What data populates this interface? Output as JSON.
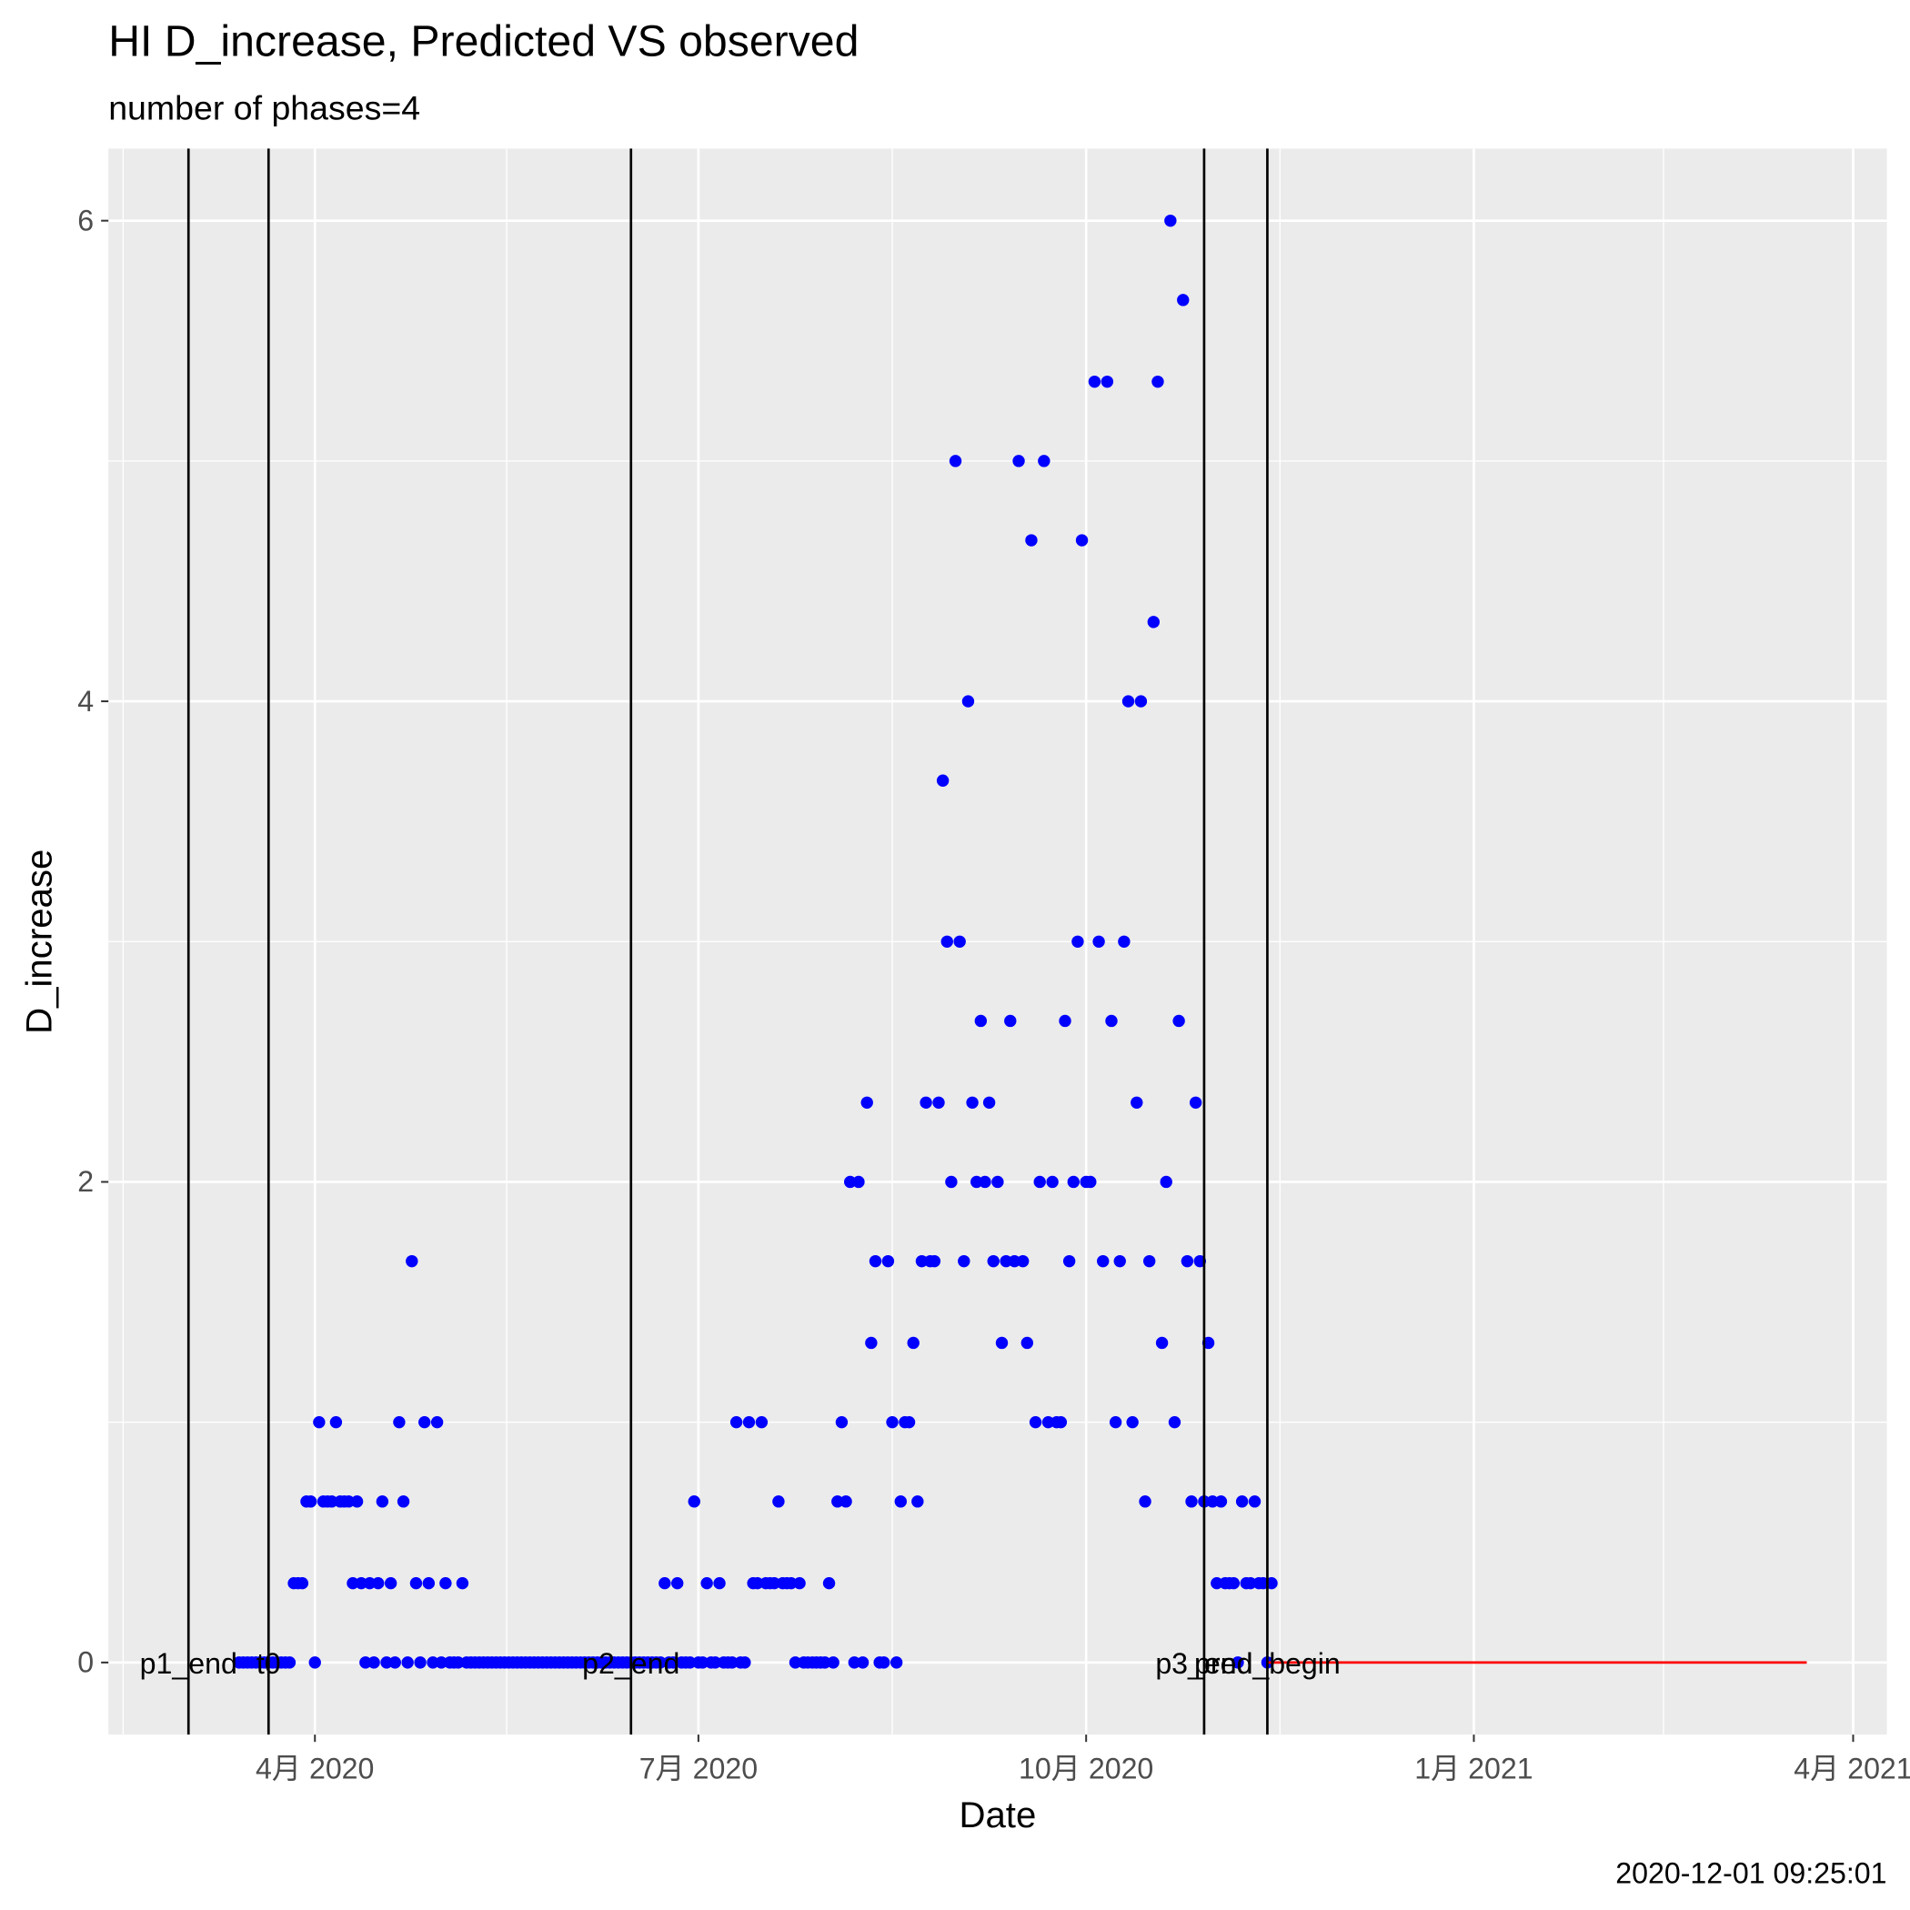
{
  "chart_data": {
    "type": "scatter",
    "title": "HI D_increase, Predicted VS observed",
    "subtitle": "number of phases=4",
    "x_label": "Date",
    "y_label": "D_increase",
    "caption": "2020-12-01 09:25:01",
    "xlim": [
      "2020-02-12",
      "2021-04-09"
    ],
    "xticks": [
      {
        "value": "2020-04-01",
        "label": "4月 2020"
      },
      {
        "value": "2020-07-01",
        "label": "7月 2020"
      },
      {
        "value": "2020-10-01",
        "label": "10月 2020"
      },
      {
        "value": "2021-01-01",
        "label": "1月 2021"
      },
      {
        "value": "2021-04-01",
        "label": "4月 2021"
      }
    ],
    "ylim": [
      -0.3,
      6.3
    ],
    "yticks": [
      0,
      2,
      4,
      6
    ],
    "grid": true,
    "vlines": [
      {
        "label": "p1_end",
        "x": "2020-03-02",
        "color": "#000000"
      },
      {
        "label": "t0",
        "x": "2020-03-21",
        "color": "#000000"
      },
      {
        "label": "p2_end",
        "x": "2020-06-15",
        "color": "#000000"
      },
      {
        "label": "p3_end",
        "x": "2020-10-29",
        "color": "#000000"
      },
      {
        "label": "pred_begin",
        "x": "2020-11-13",
        "color": "#000000"
      }
    ],
    "series": [
      {
        "type": "scatter",
        "color": "#0000ff",
        "x": [
          "2020-03-14",
          "2020-03-15",
          "2020-03-16",
          "2020-03-17",
          "2020-03-18",
          "2020-03-19",
          "2020-03-20",
          "2020-03-21",
          "2020-03-22",
          "2020-03-23",
          "2020-03-24",
          "2020-03-25",
          "2020-03-26",
          "2020-03-27",
          "2020-03-28",
          "2020-03-29",
          "2020-03-30",
          "2020-03-31",
          "2020-04-01",
          "2020-04-02",
          "2020-04-03",
          "2020-04-04",
          "2020-04-05",
          "2020-04-06",
          "2020-04-07",
          "2020-04-08",
          "2020-04-09",
          "2020-04-10",
          "2020-04-11",
          "2020-04-12",
          "2020-04-13",
          "2020-04-14",
          "2020-04-15",
          "2020-04-16",
          "2020-04-17",
          "2020-04-18",
          "2020-04-19",
          "2020-04-20",
          "2020-04-21",
          "2020-04-22",
          "2020-04-23",
          "2020-04-24",
          "2020-04-25",
          "2020-04-26",
          "2020-04-27",
          "2020-04-28",
          "2020-04-29",
          "2020-04-30",
          "2020-05-01",
          "2020-05-02",
          "2020-05-03",
          "2020-05-04",
          "2020-05-05",
          "2020-05-06",
          "2020-05-07",
          "2020-05-08",
          "2020-05-09",
          "2020-05-10",
          "2020-05-11",
          "2020-05-12",
          "2020-05-13",
          "2020-05-14",
          "2020-05-15",
          "2020-05-16",
          "2020-05-17",
          "2020-05-18",
          "2020-05-19",
          "2020-05-20",
          "2020-05-21",
          "2020-05-22",
          "2020-05-23",
          "2020-05-24",
          "2020-05-25",
          "2020-05-26",
          "2020-05-27",
          "2020-05-28",
          "2020-05-29",
          "2020-05-30",
          "2020-05-31",
          "2020-06-01",
          "2020-06-02",
          "2020-06-03",
          "2020-06-04",
          "2020-06-05",
          "2020-06-06",
          "2020-06-07",
          "2020-06-08",
          "2020-06-09",
          "2020-06-10",
          "2020-06-11",
          "2020-06-12",
          "2020-06-13",
          "2020-06-14",
          "2020-06-15",
          "2020-06-16",
          "2020-06-17",
          "2020-06-18",
          "2020-06-19",
          "2020-06-20",
          "2020-06-21",
          "2020-06-22",
          "2020-06-23",
          "2020-06-24",
          "2020-06-25",
          "2020-06-26",
          "2020-06-27",
          "2020-06-28",
          "2020-06-29",
          "2020-06-30",
          "2020-07-01",
          "2020-07-02",
          "2020-07-03",
          "2020-07-04",
          "2020-07-05",
          "2020-07-06",
          "2020-07-07",
          "2020-07-08",
          "2020-07-09",
          "2020-07-10",
          "2020-07-11",
          "2020-07-12",
          "2020-07-13",
          "2020-07-14",
          "2020-07-15",
          "2020-07-16",
          "2020-07-17",
          "2020-07-18",
          "2020-07-19",
          "2020-07-20",
          "2020-07-21",
          "2020-07-22",
          "2020-07-23",
          "2020-07-24",
          "2020-07-25",
          "2020-07-26",
          "2020-07-27",
          "2020-07-28",
          "2020-07-29",
          "2020-07-30",
          "2020-07-31",
          "2020-08-01",
          "2020-08-02",
          "2020-08-03",
          "2020-08-04",
          "2020-08-05",
          "2020-08-06",
          "2020-08-07",
          "2020-08-08",
          "2020-08-09",
          "2020-08-10",
          "2020-08-11",
          "2020-08-12",
          "2020-08-13",
          "2020-08-14",
          "2020-08-15",
          "2020-08-16",
          "2020-08-17",
          "2020-08-18",
          "2020-08-19",
          "2020-08-20",
          "2020-08-21",
          "2020-08-22",
          "2020-08-23",
          "2020-08-24",
          "2020-08-25",
          "2020-08-26",
          "2020-08-27",
          "2020-08-28",
          "2020-08-29",
          "2020-08-30",
          "2020-08-31",
          "2020-09-01",
          "2020-09-02",
          "2020-09-03",
          "2020-09-04",
          "2020-09-05",
          "2020-09-06",
          "2020-09-07",
          "2020-09-08",
          "2020-09-09",
          "2020-09-10",
          "2020-09-11",
          "2020-09-12",
          "2020-09-13",
          "2020-09-14",
          "2020-09-15",
          "2020-09-16",
          "2020-09-17",
          "2020-09-18",
          "2020-09-19",
          "2020-09-20",
          "2020-09-21",
          "2020-09-22",
          "2020-09-23",
          "2020-09-24",
          "2020-09-25",
          "2020-09-26",
          "2020-09-27",
          "2020-09-28",
          "2020-09-29",
          "2020-09-30",
          "2020-10-01",
          "2020-10-02",
          "2020-10-03",
          "2020-10-04",
          "2020-10-05",
          "2020-10-06",
          "2020-10-07",
          "2020-10-08",
          "2020-10-09",
          "2020-10-10",
          "2020-10-11",
          "2020-10-12",
          "2020-10-13",
          "2020-10-14",
          "2020-10-15",
          "2020-10-16",
          "2020-10-17",
          "2020-10-18",
          "2020-10-19",
          "2020-10-20",
          "2020-10-21",
          "2020-10-22",
          "2020-10-23",
          "2020-10-24",
          "2020-10-25",
          "2020-10-26",
          "2020-10-27",
          "2020-10-28",
          "2020-10-29",
          "2020-10-30",
          "2020-10-31",
          "2020-11-01",
          "2020-11-02",
          "2020-11-03",
          "2020-11-04",
          "2020-11-05",
          "2020-11-06",
          "2020-11-07",
          "2020-11-08",
          "2020-11-09",
          "2020-11-10",
          "2020-11-11",
          "2020-11-12",
          "2020-11-13",
          "2020-11-14"
        ],
        "values": [
          0,
          0,
          0,
          0,
          0,
          0,
          0,
          0,
          0,
          0,
          0,
          0,
          0,
          0.33,
          0.33,
          0.33,
          0.67,
          0.67,
          0,
          1,
          0.67,
          0.67,
          0.67,
          1,
          0.67,
          0.67,
          0.67,
          0.33,
          0.67,
          0.33,
          0,
          0.33,
          0,
          0.33,
          0.67,
          0,
          0.33,
          0,
          1,
          0.67,
          0,
          1.67,
          0.33,
          0,
          1,
          0.33,
          0,
          1,
          0,
          0.33,
          0,
          0,
          0,
          0.33,
          0,
          0,
          0,
          0,
          0,
          0,
          0,
          0,
          0,
          0,
          0,
          0,
          0,
          0,
          0,
          0,
          0,
          0,
          0,
          0,
          0,
          0,
          0,
          0,
          0,
          0,
          0,
          0,
          0,
          0,
          0,
          0,
          0,
          0,
          0,
          0,
          0,
          0,
          0,
          0,
          0,
          0,
          0,
          0,
          0,
          0,
          0,
          0.33,
          0,
          0,
          0.33,
          0,
          0,
          0,
          0.67,
          0,
          0,
          0.33,
          0,
          0,
          0.33,
          0,
          0,
          0,
          1,
          0,
          0,
          1,
          0.33,
          0.33,
          1,
          0.33,
          0.33,
          0.33,
          0.67,
          0.33,
          0.33,
          0.33,
          0,
          0.33,
          0,
          0,
          0,
          0,
          0,
          0,
          0.33,
          0,
          0.67,
          1,
          0.67,
          2,
          0,
          2,
          0,
          2.33,
          1.33,
          1.67,
          0,
          0,
          1.67,
          1,
          0,
          0.67,
          1,
          1,
          1.33,
          0.67,
          1.67,
          2.33,
          1.67,
          1.67,
          2.33,
          3.67,
          3,
          2,
          5,
          3,
          1.67,
          4,
          2.33,
          2,
          2.67,
          2,
          2.33,
          1.67,
          2,
          1.33,
          1.67,
          2.67,
          1.67,
          5,
          1.67,
          1.33,
          4.67,
          1,
          2,
          5,
          1,
          2,
          1,
          1,
          2.67,
          1.67,
          2,
          3,
          4.67,
          2,
          2,
          5.33,
          3,
          1.67,
          5.33,
          2.67,
          1,
          1.67,
          3,
          4,
          1,
          2.33,
          4,
          0.67,
          1.67,
          4.33,
          5.33,
          1.33,
          2,
          6,
          1,
          2.67,
          5.67,
          1.67,
          0.67,
          2.33,
          1.67,
          0.67,
          1.33,
          0.67,
          0.33,
          0.67,
          0.33,
          0.33,
          0.33,
          0,
          0.67,
          0.33,
          0.33,
          0.67,
          0.33,
          0.33,
          0,
          0.33
        ]
      },
      {
        "type": "line",
        "color": "#ff0000",
        "x": [
          "2020-11-13",
          "2021-03-21"
        ],
        "values": [
          0,
          0
        ]
      }
    ]
  }
}
